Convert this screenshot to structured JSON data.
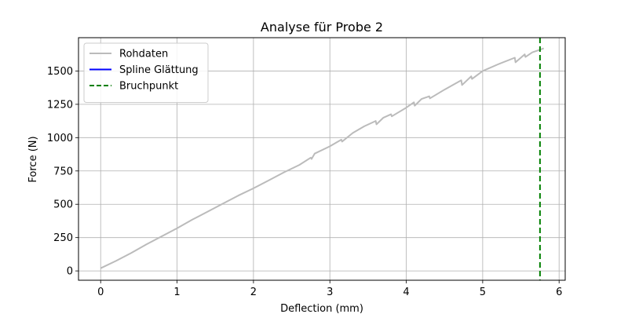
{
  "chart_data": {
    "type": "line",
    "title": "Analyse für Probe 2",
    "xlabel": "Deflection (mm)",
    "ylabel": "Force (N)",
    "xlim": [
      -0.29,
      6.08
    ],
    "ylim": [
      -70,
      1750
    ],
    "xticks": [
      0,
      1,
      2,
      3,
      4,
      5,
      6
    ],
    "yticks": [
      0,
      250,
      500,
      750,
      1000,
      1250,
      1500
    ],
    "grid": true,
    "legend_position": "top-left",
    "legend": [
      "Rohdaten",
      "Spline Glättung",
      "Bruchpunkt"
    ],
    "series": [
      {
        "name": "Rohdaten",
        "color": "#bbbbbb",
        "style": "solid",
        "x": [
          0.0,
          0.2,
          0.4,
          0.6,
          0.8,
          1.0,
          1.2,
          1.4,
          1.6,
          1.8,
          2.0,
          2.2,
          2.4,
          2.6,
          2.75,
          2.76,
          2.8,
          3.0,
          3.15,
          3.16,
          3.3,
          3.45,
          3.6,
          3.61,
          3.7,
          3.8,
          3.81,
          4.0,
          4.1,
          4.11,
          4.2,
          4.3,
          4.31,
          4.5,
          4.72,
          4.73,
          4.85,
          4.86,
          5.0,
          5.2,
          5.42,
          5.43,
          5.55,
          5.56,
          5.65,
          5.75,
          5.8
        ],
        "y": [
          20,
          75,
          135,
          200,
          260,
          320,
          385,
          445,
          505,
          565,
          620,
          680,
          740,
          795,
          850,
          840,
          880,
          935,
          985,
          970,
          1035,
          1085,
          1125,
          1100,
          1150,
          1175,
          1160,
          1225,
          1265,
          1240,
          1290,
          1310,
          1295,
          1360,
          1430,
          1395,
          1460,
          1440,
          1500,
          1550,
          1600,
          1565,
          1625,
          1605,
          1640,
          1660,
          1670
        ]
      },
      {
        "name": "Spline Glättung",
        "color": "#0000ff",
        "style": "solid",
        "x": [],
        "y": []
      },
      {
        "name": "Bruchpunkt",
        "color": "#008000",
        "style": "dashed",
        "vline_x": 5.75
      }
    ]
  }
}
